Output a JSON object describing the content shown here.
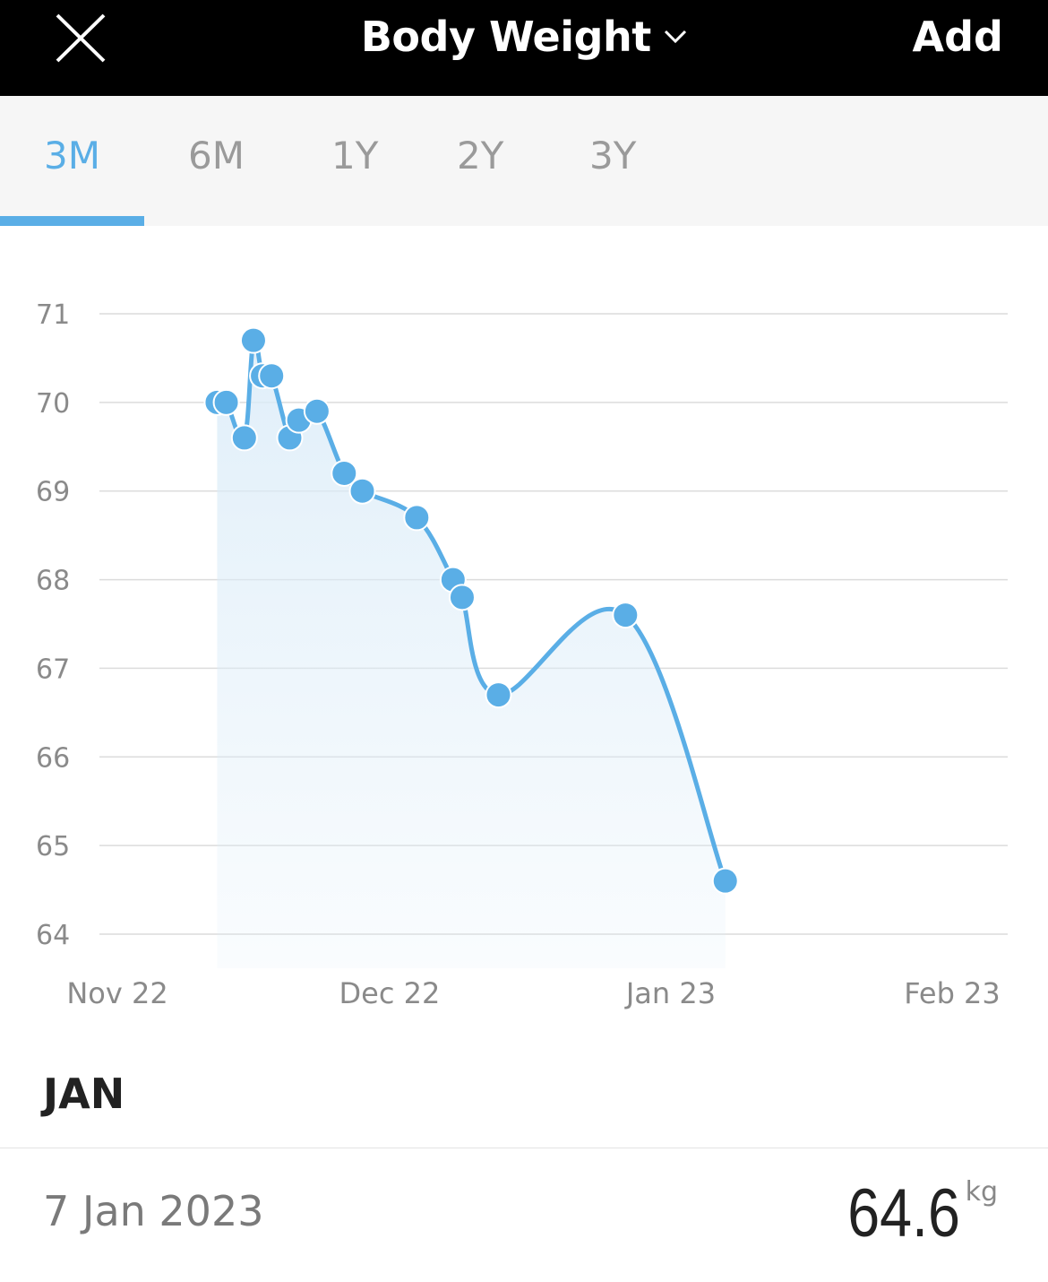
{
  "header": {
    "title": "Body Weight",
    "add_label": "Add",
    "close_icon": "close-icon",
    "dropdown_icon": "chevron-down-icon",
    "background": "#000000"
  },
  "tabs": [
    {
      "label": "3M",
      "active": true
    },
    {
      "label": "6M",
      "active": false
    },
    {
      "label": "1Y",
      "active": false
    },
    {
      "label": "2Y",
      "active": false
    },
    {
      "label": "3Y",
      "active": false
    }
  ],
  "accent_color": "#5aaee6",
  "chart_data": {
    "type": "line",
    "y_ticks": [
      71,
      70,
      69,
      68,
      67,
      66,
      65,
      64
    ],
    "ylim": [
      64,
      71
    ],
    "x_ticks": [
      "Nov 22",
      "Dec 22",
      "Jan 23",
      "Feb 23"
    ],
    "xlim": [
      "2022-11-01",
      "2023-02-01"
    ],
    "grid": true,
    "series": [
      {
        "area_fill": true,
        "points": [
          {
            "x": "2022-11-12",
            "y": 70.0
          },
          {
            "x": "2022-11-13",
            "y": 70.0
          },
          {
            "x": "2022-11-15",
            "y": 69.6
          },
          {
            "x": "2022-11-16",
            "y": 70.7
          },
          {
            "x": "2022-11-17",
            "y": 70.3
          },
          {
            "x": "2022-11-18",
            "y": 70.3
          },
          {
            "x": "2022-11-20",
            "y": 69.6
          },
          {
            "x": "2022-11-21",
            "y": 69.8
          },
          {
            "x": "2022-11-23",
            "y": 69.9
          },
          {
            "x": "2022-11-26",
            "y": 69.2
          },
          {
            "x": "2022-11-28",
            "y": 69.0
          },
          {
            "x": "2022-12-04",
            "y": 68.7
          },
          {
            "x": "2022-12-08",
            "y": 68.0
          },
          {
            "x": "2022-12-09",
            "y": 67.8
          },
          {
            "x": "2022-12-13",
            "y": 66.7
          },
          {
            "x": "2022-12-27",
            "y": 67.6
          },
          {
            "x": "2023-01-07",
            "y": 64.6
          }
        ]
      }
    ]
  },
  "month_heading": "JAN",
  "entry": {
    "date": "7 Jan 2023",
    "value": "64.6",
    "unit": "kg"
  }
}
